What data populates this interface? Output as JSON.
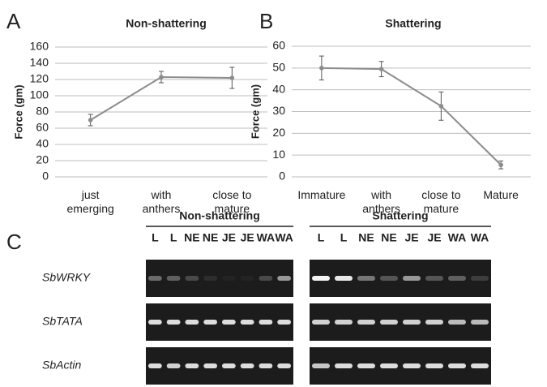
{
  "chart_data": [
    {
      "type": "line",
      "panel": "A",
      "title": "Non-shattering",
      "y_label": "Force (gm)",
      "categories": [
        "just emerging",
        "with anthers",
        "close to mature"
      ],
      "values": [
        70,
        123,
        122
      ],
      "errors": [
        7,
        7,
        13
      ],
      "color": "#8c8c8c",
      "ylim": [
        0,
        160
      ],
      "yticks": [
        0,
        20,
        40,
        60,
        80,
        100,
        120,
        140,
        160
      ],
      "grid": true
    },
    {
      "type": "line",
      "panel": "B",
      "title": "Shattering",
      "y_label": "Force (gm)",
      "categories": [
        "Immature",
        "with anthers",
        "close to mature",
        "Mature"
      ],
      "values": [
        50,
        49.5,
        32.5,
        5.5
      ],
      "errors": [
        5.5,
        3.5,
        6.5,
        1.8
      ],
      "color": "#8c8c8c",
      "ylim": [
        0,
        60
      ],
      "yticks": [
        0,
        10,
        20,
        30,
        40,
        50,
        60
      ],
      "grid": true
    }
  ],
  "gel": {
    "panel": "C",
    "groups": [
      {
        "title": "Non-shattering",
        "lanes": [
          "L",
          "L",
          "NE",
          "NE",
          "JE",
          "JE",
          "WA",
          "WA"
        ]
      },
      {
        "title": "Shattering",
        "lanes": [
          "L",
          "L",
          "NE",
          "NE",
          "JE",
          "JE",
          "WA",
          "WA"
        ]
      }
    ],
    "genes": [
      "SbWRKY",
      "SbTATA",
      "SbActin"
    ]
  }
}
